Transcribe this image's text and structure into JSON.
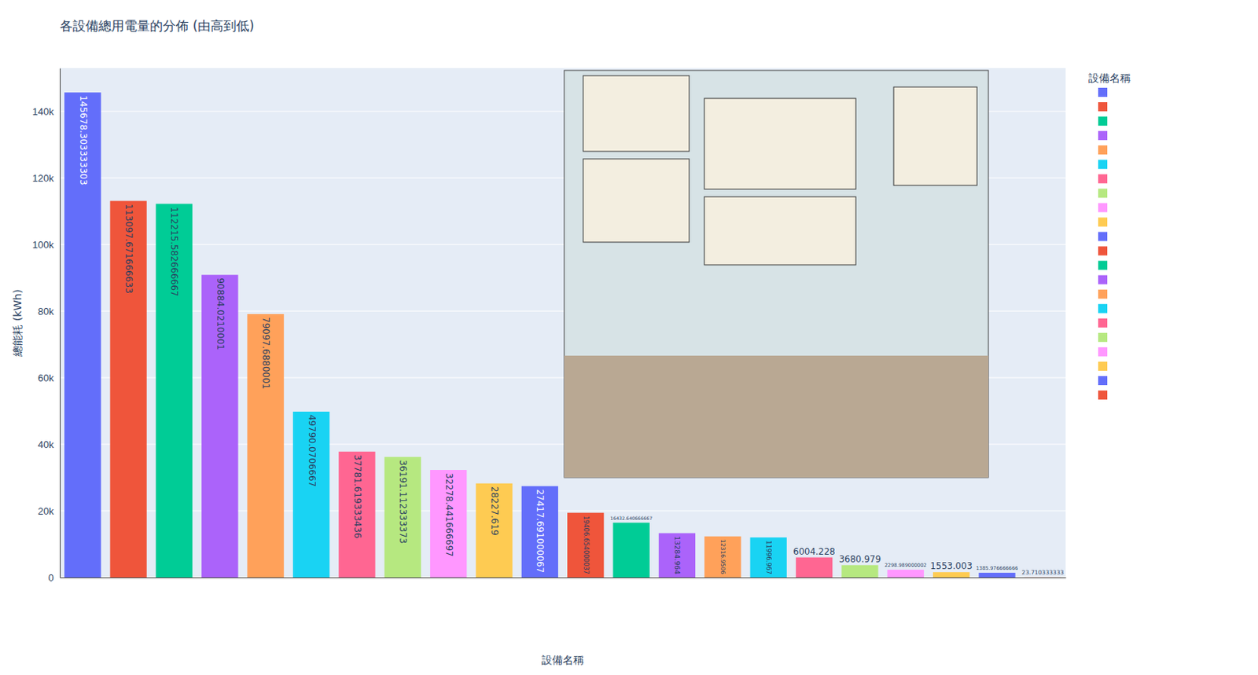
{
  "chart_data": {
    "type": "bar",
    "title": "各設備總用電量的分佈 (由高到低)",
    "x_label": "設備名稱",
    "y_label": "總能耗 (kWh)",
    "legend_title": "設備名稱",
    "categories": [
      null,
      null,
      null,
      null,
      null,
      null,
      null,
      null,
      null,
      null,
      null,
      null,
      null,
      null,
      null,
      null,
      null,
      null,
      null,
      null,
      null,
      null
    ],
    "values": [
      145678.303333303,
      113097.671666633,
      112215.582666667,
      90884.0210001,
      79097.6880001,
      49790.0706667,
      37781.619333436,
      36191.112333373,
      32278.441666697,
      28227.619,
      27417.691000067,
      19406.654000037,
      16432.640666667,
      13284.964,
      12316.9506,
      11996.967,
      6004.228,
      3680.979,
      2298.989000002,
      1553.003,
      1385.976666666,
      23.710333333
    ],
    "colors": [
      "#636efa",
      "#EF553B",
      "#00cc96",
      "#ab63fa",
      "#FFA15A",
      "#19d3f3",
      "#FF6692",
      "#B6E880",
      "#FF97FF",
      "#FECB52",
      "#636efa",
      "#EF553B",
      "#00cc96",
      "#ab63fa",
      "#FFA15A",
      "#19d3f3",
      "#FF6692",
      "#B6E880",
      "#FF97FF",
      "#FECB52",
      "#636efa",
      "#EF553B"
    ],
    "ylim": [
      0,
      153000
    ],
    "yticks": [
      0,
      {
        "value": 20000,
        "label": "20k"
      },
      {
        "value": 40000,
        "label": "40k"
      },
      {
        "value": 60000,
        "label": "60k"
      },
      {
        "value": 80000,
        "label": "80k"
      },
      {
        "value": 100000,
        "label": "100k"
      },
      {
        "value": 120000,
        "label": "120k"
      },
      {
        "value": 140000,
        "label": "140k"
      }
    ],
    "grid": true,
    "data_labels": true,
    "legend": "right"
  }
}
